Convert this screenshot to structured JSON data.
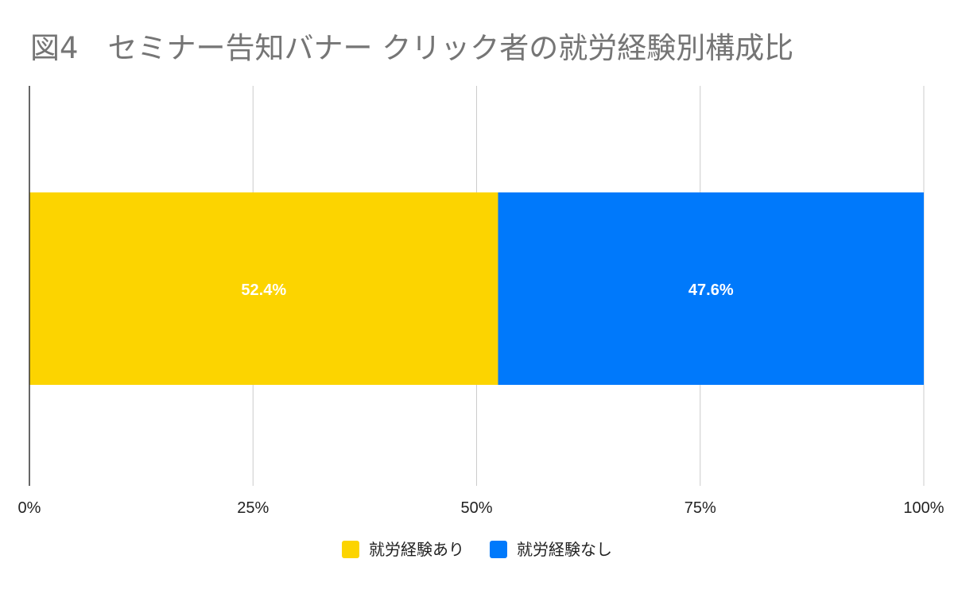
{
  "chart_data": {
    "type": "bar",
    "orientation": "horizontal",
    "stacked": true,
    "title": "図4　セミナー告知バナー クリック者の就労経験別構成比",
    "xlabel": "",
    "ylabel": "",
    "xlim": [
      0,
      100
    ],
    "x_ticks": [
      "0%",
      "25%",
      "50%",
      "75%",
      "100%"
    ],
    "grid": true,
    "legend_position": "bottom",
    "series": [
      {
        "name": "就労経験あり",
        "values": [
          52.4
        ],
        "label": "52.4%",
        "color": "#fcd400"
      },
      {
        "name": "就労経験なし",
        "values": [
          47.6
        ],
        "label": "47.6%",
        "color": "#0079fb"
      }
    ]
  }
}
